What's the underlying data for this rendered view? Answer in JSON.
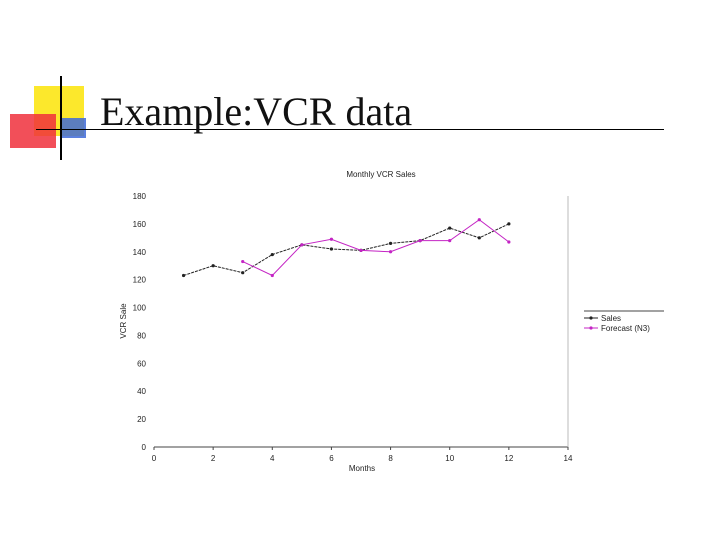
{
  "slide": {
    "title": "Example:VCR data"
  },
  "colors": {
    "accent_yellow": "#fce82c",
    "accent_red": "#f0303c",
    "accent_blue": "#3f6ad8",
    "rule": "#000000",
    "sales_series": "#222222",
    "forecast_series": "#c424c4"
  },
  "chart_data": {
    "type": "line",
    "title": "Monthly VCR Sales",
    "xlabel": "Months",
    "ylabel": "VCR Sale",
    "xlim": [
      0,
      14
    ],
    "ylim": [
      0,
      180
    ],
    "xticks": [
      0,
      2,
      4,
      6,
      8,
      10,
      12,
      14
    ],
    "yticks": [
      0,
      20,
      40,
      60,
      80,
      100,
      120,
      140,
      160,
      180
    ],
    "grid": false,
    "legend_position": "right",
    "series": [
      {
        "name": "Sales",
        "color": "#222222",
        "x": [
          1,
          2,
          3,
          4,
          5,
          6,
          7,
          8,
          9,
          10,
          11,
          12
        ],
        "y": [
          123,
          130,
          125,
          138,
          145,
          142,
          141,
          146,
          148,
          157,
          150,
          160
        ]
      },
      {
        "name": "Forecast (N3)",
        "color": "#c424c4",
        "x": [
          3,
          4,
          5,
          6,
          7,
          8,
          9,
          10,
          11,
          12
        ],
        "y": [
          133,
          123,
          145,
          149,
          141,
          140,
          148,
          148,
          163,
          147
        ]
      }
    ]
  }
}
